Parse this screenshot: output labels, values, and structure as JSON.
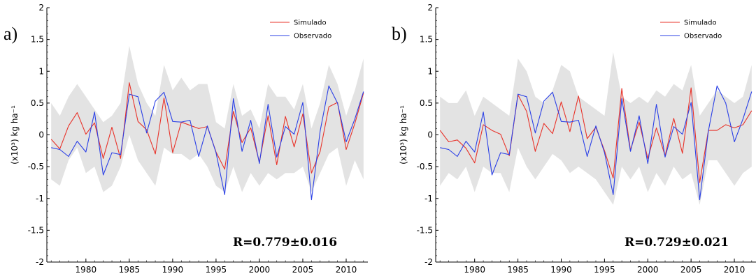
{
  "chart_data": [
    {
      "type": "line",
      "panel_label": "a)",
      "annotation": "R=0.779±0.016",
      "ylabel": "(x10³) kg ha⁻¹",
      "xlim": [
        1975.5,
        2012.5
      ],
      "ylim": [
        -2,
        2
      ],
      "yticks": [
        "-2",
        "-1.5",
        "-1",
        "-0.5",
        "0",
        "0.5",
        "1",
        "1.5",
        "2"
      ],
      "xticks": [
        "1980",
        "1985",
        "1990",
        "1995",
        "2000",
        "2005",
        "2010"
      ],
      "legend_position": "top-right",
      "x": [
        1976,
        1977,
        1978,
        1979,
        1980,
        1981,
        1982,
        1983,
        1984,
        1985,
        1986,
        1987,
        1988,
        1989,
        1990,
        1991,
        1992,
        1993,
        1994,
        1995,
        1996,
        1997,
        1998,
        1999,
        2000,
        2001,
        2002,
        2003,
        2004,
        2005,
        2006,
        2007,
        2008,
        2009,
        2010,
        2011,
        2012
      ],
      "band_upper": [
        0.5,
        0.3,
        0.6,
        0.8,
        0.6,
        0.4,
        0.2,
        0.3,
        0.5,
        1.4,
        0.8,
        0.5,
        0.3,
        1.1,
        0.7,
        0.9,
        0.7,
        0.8,
        0.8,
        0.2,
        0.1,
        0.8,
        0.3,
        0.4,
        0.1,
        0.8,
        0.6,
        0.6,
        0.4,
        0.8,
        0.1,
        0.5,
        1.1,
        0.8,
        0.3,
        0.7,
        1.2
      ],
      "band_lower": [
        -0.7,
        -0.8,
        -0.4,
        -0.2,
        -0.6,
        -0.5,
        -0.9,
        -0.8,
        -0.5,
        0.0,
        -0.4,
        -0.6,
        -0.8,
        -0.2,
        -0.3,
        -0.3,
        -0.4,
        -0.3,
        -0.5,
        -0.8,
        -0.9,
        -0.5,
        -0.9,
        -0.6,
        -0.8,
        -0.6,
        -0.7,
        -0.6,
        -0.6,
        -0.5,
        -0.9,
        -0.6,
        -0.3,
        -0.2,
        -0.8,
        -0.4,
        -0.7
      ],
      "series": [
        {
          "name": "Simulado",
          "color": "#e8332a",
          "values": [
            -0.07,
            -0.22,
            0.14,
            0.35,
            0.01,
            0.19,
            -0.37,
            0.12,
            -0.37,
            0.82,
            0.21,
            0.08,
            -0.3,
            0.58,
            -0.28,
            0.2,
            0.15,
            0.1,
            0.13,
            -0.27,
            -0.54,
            0.37,
            -0.12,
            0.11,
            -0.43,
            0.3,
            -0.47,
            0.29,
            -0.19,
            0.33,
            -0.6,
            -0.26,
            0.44,
            0.51,
            -0.23,
            0.18,
            0.66
          ]
        },
        {
          "name": "Observado",
          "color": "#2b40e6",
          "values": [
            -0.2,
            -0.23,
            -0.34,
            -0.1,
            -0.27,
            0.36,
            -0.63,
            -0.28,
            -0.31,
            0.64,
            0.6,
            0.03,
            0.53,
            0.67,
            0.21,
            0.2,
            0.23,
            -0.34,
            0.14,
            -0.28,
            -0.94,
            0.57,
            -0.26,
            0.23,
            -0.45,
            0.48,
            -0.35,
            0.13,
            0.01,
            0.51,
            -1.02,
            0.06,
            0.77,
            0.5,
            -0.11,
            0.25,
            0.68
          ]
        }
      ]
    },
    {
      "type": "line",
      "panel_label": "b)",
      "annotation": "R=0.729±0.021",
      "ylabel": "(x10³) kg ha⁻¹",
      "xlim": [
        1975.5,
        2012.5
      ],
      "ylim": [
        -2,
        2
      ],
      "yticks": [
        "-2",
        "-1.5",
        "-1",
        "-0.5",
        "0",
        "0.5",
        "1",
        "1.5",
        "2"
      ],
      "xticks": [
        "1980",
        "1985",
        "1990",
        "1995",
        "2000",
        "2005",
        "2010"
      ],
      "legend_position": "top-right",
      "x": [
        1976,
        1977,
        1978,
        1979,
        1980,
        1981,
        1982,
        1983,
        1984,
        1985,
        1986,
        1987,
        1988,
        1989,
        1990,
        1991,
        1992,
        1993,
        1994,
        1995,
        1996,
        1997,
        1998,
        1999,
        2000,
        2001,
        2002,
        2003,
        2004,
        2005,
        2006,
        2007,
        2008,
        2009,
        2010,
        2011,
        2012
      ],
      "band_upper": [
        0.6,
        0.5,
        0.5,
        0.7,
        0.3,
        0.6,
        0.5,
        0.4,
        0.3,
        1.2,
        1.0,
        0.6,
        0.5,
        0.7,
        1.1,
        1.0,
        0.6,
        0.5,
        0.4,
        0.3,
        1.3,
        0.6,
        0.5,
        0.6,
        0.5,
        0.7,
        0.6,
        0.8,
        0.7,
        1.1,
        0.3,
        0.5,
        0.7,
        0.6,
        0.5,
        0.6,
        1.1
      ],
      "band_lower": [
        -0.8,
        -0.6,
        -0.7,
        -0.5,
        -0.9,
        -0.5,
        -0.6,
        -0.6,
        -0.9,
        -0.2,
        -0.5,
        -0.7,
        -0.5,
        -0.3,
        -0.4,
        -0.6,
        -0.5,
        -0.6,
        -0.7,
        -0.9,
        -1.1,
        -0.5,
        -0.7,
        -0.5,
        -0.9,
        -0.6,
        -0.8,
        -0.5,
        -0.7,
        -0.6,
        -1.1,
        -0.4,
        -0.4,
        -0.6,
        -0.8,
        -0.6,
        -0.5
      ],
      "series": [
        {
          "name": "Simulado",
          "color": "#e8332a",
          "values": [
            0.07,
            -0.11,
            -0.08,
            -0.21,
            -0.44,
            0.16,
            0.07,
            0.01,
            -0.33,
            0.63,
            0.37,
            -0.26,
            0.18,
            0.02,
            0.52,
            0.05,
            0.61,
            -0.06,
            0.12,
            -0.25,
            -0.68,
            0.73,
            -0.24,
            0.2,
            -0.37,
            0.11,
            -0.33,
            0.26,
            -0.29,
            0.74,
            -0.75,
            0.07,
            0.07,
            0.16,
            0.11,
            0.16,
            0.38
          ]
        },
        {
          "name": "Observado",
          "color": "#2b40e6",
          "values": [
            -0.2,
            -0.23,
            -0.34,
            -0.1,
            -0.27,
            0.36,
            -0.63,
            -0.28,
            -0.31,
            0.64,
            0.6,
            0.03,
            0.53,
            0.67,
            0.21,
            0.2,
            0.23,
            -0.34,
            0.14,
            -0.28,
            -0.94,
            0.57,
            -0.26,
            0.3,
            -0.45,
            0.48,
            -0.35,
            0.13,
            0.01,
            0.51,
            -1.02,
            0.06,
            0.77,
            0.5,
            -0.11,
            0.25,
            0.68
          ]
        }
      ]
    }
  ]
}
